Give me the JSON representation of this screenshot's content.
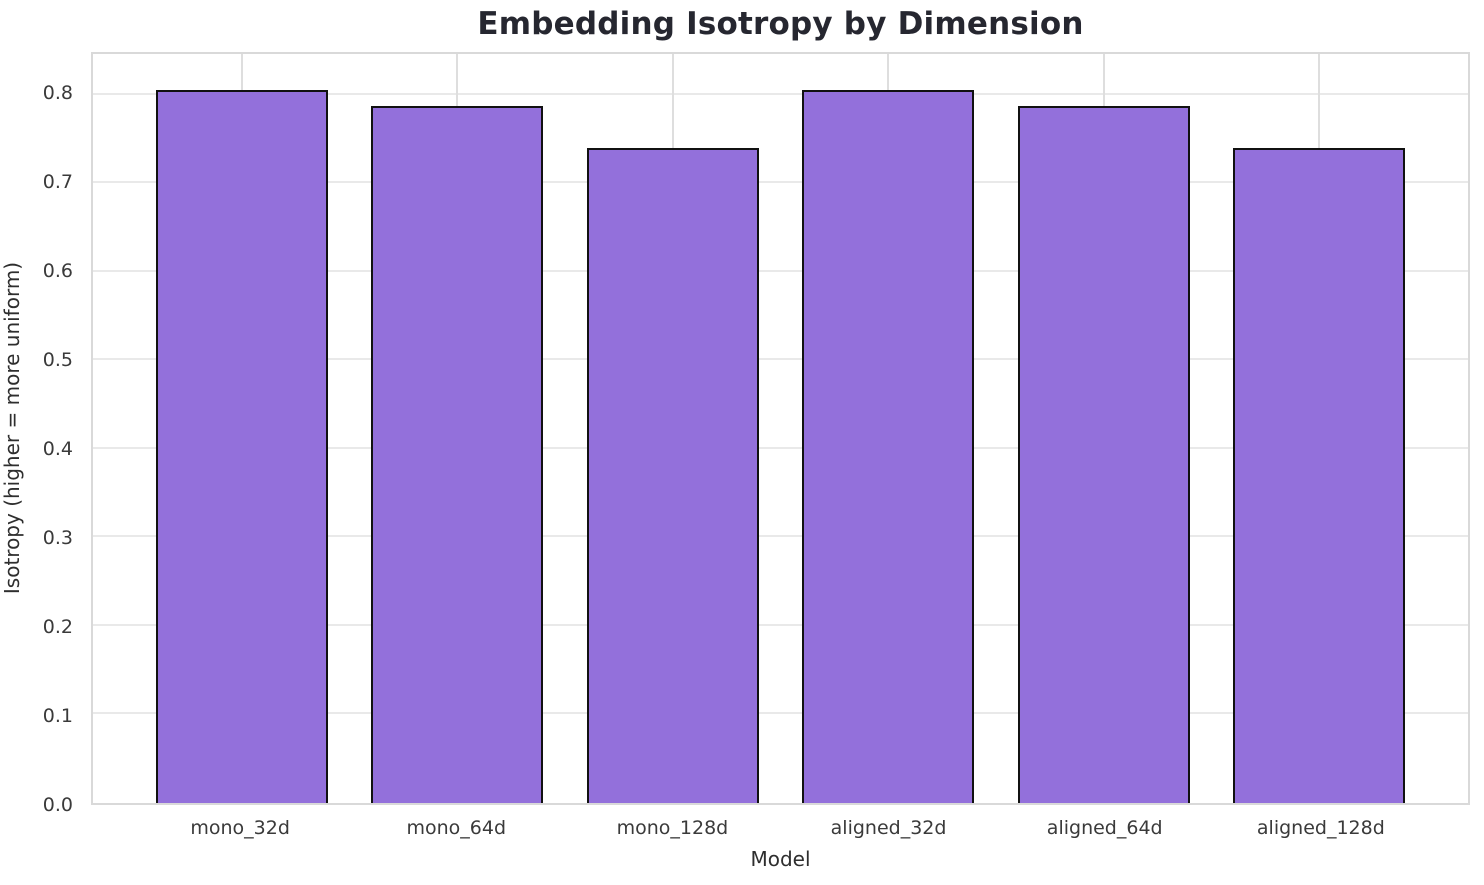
{
  "chart_data": {
    "type": "bar",
    "title": "Embedding Isotropy by Dimension",
    "xlabel": "Model",
    "ylabel": "Isotropy (higher = more uniform)",
    "categories": [
      "mono_32d",
      "mono_64d",
      "mono_128d",
      "aligned_32d",
      "aligned_64d",
      "aligned_128d"
    ],
    "values": [
      0.805,
      0.787,
      0.74,
      0.805,
      0.787,
      0.74
    ],
    "ylim": [
      0,
      0.846
    ],
    "yticks": [
      0.0,
      0.1,
      0.2,
      0.3,
      0.4,
      0.5,
      0.6,
      0.7,
      0.8
    ],
    "grid": true,
    "legend": null,
    "colors": {
      "bar_fill": "#9370DB",
      "bar_edge": "#111111",
      "gridline": "#e9e9e9",
      "spine": "#d9d9d9",
      "title_text": "#262730",
      "tick_text": "#3a3a3a",
      "background": "#ffffff"
    }
  }
}
